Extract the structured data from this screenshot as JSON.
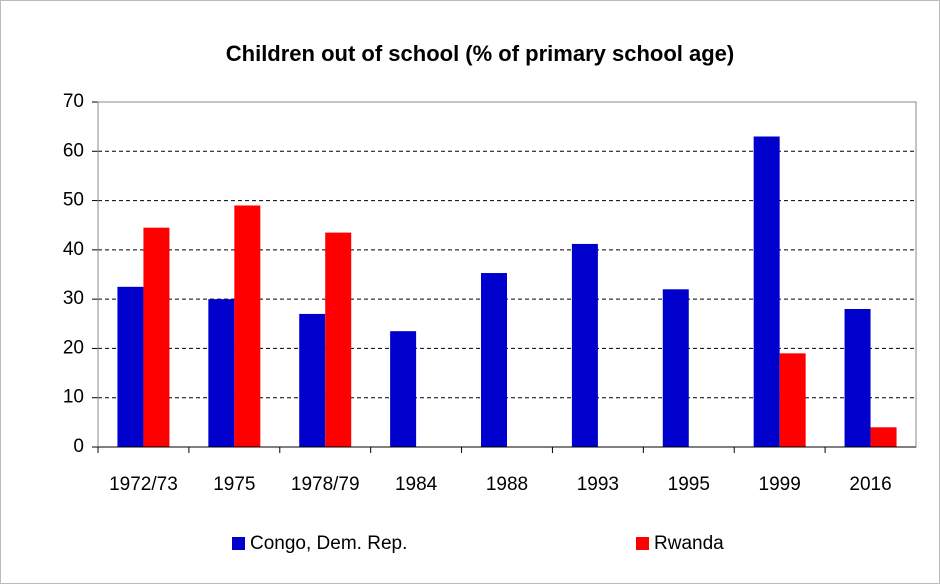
{
  "chart_data": {
    "type": "bar",
    "title": "Children out of school (% of primary school age)",
    "categories": [
      "1972/73",
      "1975",
      "1978/79",
      "1984",
      "1988",
      "1993",
      "1995",
      "1999",
      "2016"
    ],
    "series": [
      {
        "name": "Congo, Dem. Rep.",
        "color": "#0000cc",
        "values": [
          32.5,
          30,
          27,
          23.5,
          35.3,
          41.2,
          32,
          63,
          28
        ]
      },
      {
        "name": "Rwanda",
        "color": "#ff0000",
        "values": [
          44.5,
          49,
          43.5,
          null,
          null,
          null,
          null,
          19,
          4
        ]
      }
    ],
    "ylim": [
      0,
      70
    ],
    "yticks": [
      0,
      10,
      20,
      30,
      40,
      50,
      60,
      70
    ],
    "grid": true,
    "legend": "bottom"
  }
}
